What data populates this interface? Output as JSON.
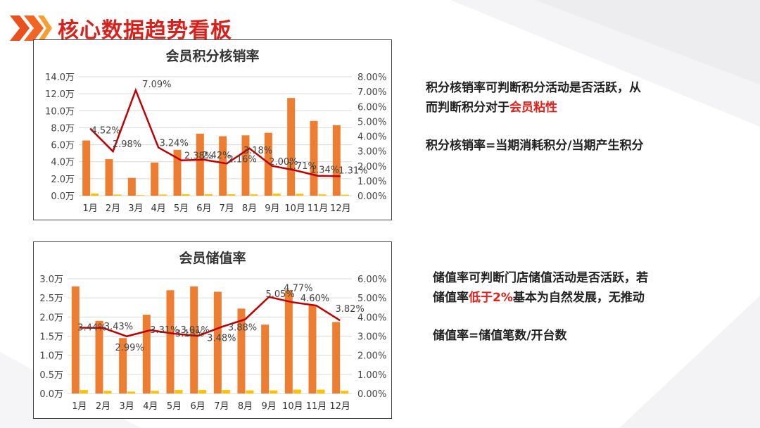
{
  "page": {
    "title": "核心数据趋势看板"
  },
  "colors": {
    "accent": "#d9201a",
    "bar_main": "#ed7d31",
    "bar_small": "#ffc000",
    "line": "#c00000"
  },
  "chart_data": [
    {
      "type": "bar",
      "title": "会员积分核销率",
      "categories": [
        "1月",
        "2月",
        "3月",
        "4月",
        "5月",
        "6月",
        "7月",
        "8月",
        "9月",
        "10月",
        "11月",
        "12月"
      ],
      "series": [
        {
          "axis": "left",
          "kind": "bar",
          "values": [
            6.5,
            4.3,
            2.1,
            3.9,
            5.4,
            7.3,
            7.0,
            7.1,
            7.4,
            11.5,
            8.8,
            8.3
          ]
        },
        {
          "axis": "left",
          "kind": "bar",
          "values": [
            0.25,
            0.13,
            0.07,
            0.13,
            0.18,
            0.18,
            0.17,
            0.15,
            0.24,
            0.23,
            0.15,
            0.11
          ]
        },
        {
          "axis": "right",
          "kind": "line",
          "values": [
            4.52,
            2.98,
            7.09,
            3.24,
            2.38,
            2.42,
            2.16,
            3.18,
            2.0,
            1.71,
            1.34,
            1.31
          ],
          "labels": [
            "4.52%",
            "2.98%",
            "7.09%",
            "3.24%",
            "2.38%",
            "2.42%",
            "2.16%",
            "3.18%",
            "2.00%",
            "1.71%",
            "1.34%",
            "1.31%"
          ]
        }
      ],
      "ylim": [
        0,
        14
      ],
      "y_ticks": [
        "0.0万",
        "2.0万",
        "4.0万",
        "6.0万",
        "8.0万",
        "10.0万",
        "12.0万",
        "14.0万"
      ],
      "y2lim": [
        0,
        8
      ],
      "y2_ticks": [
        "0.00%",
        "1.00%",
        "2.00%",
        "3.00%",
        "4.00%",
        "5.00%",
        "6.00%",
        "7.00%",
        "8.00%"
      ],
      "grid": true
    },
    {
      "type": "bar",
      "title": "会员储值率",
      "categories": [
        "1月",
        "2月",
        "3月",
        "4月",
        "5月",
        "6月",
        "7月",
        "8月",
        "9月",
        "10月",
        "11月",
        "12月"
      ],
      "series": [
        {
          "axis": "left",
          "kind": "bar",
          "values": [
            2.8,
            1.9,
            1.45,
            2.06,
            2.7,
            2.8,
            2.66,
            2.22,
            1.8,
            2.7,
            2.3,
            1.87
          ]
        },
        {
          "axis": "left",
          "kind": "bar",
          "values": [
            0.09,
            0.07,
            0.05,
            0.07,
            0.09,
            0.09,
            0.09,
            0.08,
            0.08,
            0.1,
            0.1,
            0.07
          ]
        },
        {
          "axis": "right",
          "kind": "line",
          "values": [
            3.44,
            3.43,
            2.99,
            3.31,
            3.13,
            3.01,
            3.48,
            3.88,
            5.05,
            4.77,
            4.6,
            3.82
          ],
          "labels": [
            "3.44%",
            "3.43%",
            "2.99%",
            "3.31%",
            "3.13%",
            "3.01%",
            "3.48%",
            "3.88%",
            "5.05%",
            "4.77%",
            "4.60%",
            "3.82%"
          ]
        }
      ],
      "ylim": [
        0,
        3
      ],
      "y_ticks": [
        "0.0万",
        "0.5万",
        "1.0万",
        "1.5万",
        "2.0万",
        "2.5万",
        "3.0万"
      ],
      "y2lim": [
        0,
        6
      ],
      "y2_ticks": [
        "0.00%",
        "1.00%",
        "2.00%",
        "3.00%",
        "4.00%",
        "5.00%",
        "6.00%"
      ],
      "grid": true
    }
  ],
  "notes": {
    "n1_l1": "积分核销率可判断积分活动是否活跃，从",
    "n1_l2a": "而判断积分对于",
    "n1_l2b": "会员粘性",
    "n1_formula": "积分核销率=当期消耗积分/当期产生积分",
    "n2_l1": "储值率可判断门店储值活动是否活跃，若",
    "n2_l2a": "储值率",
    "n2_l2b": "低于2%",
    "n2_l2c": "基本为自然发展，无推动",
    "n2_formula": "储值率=储值笔数/开台数"
  }
}
